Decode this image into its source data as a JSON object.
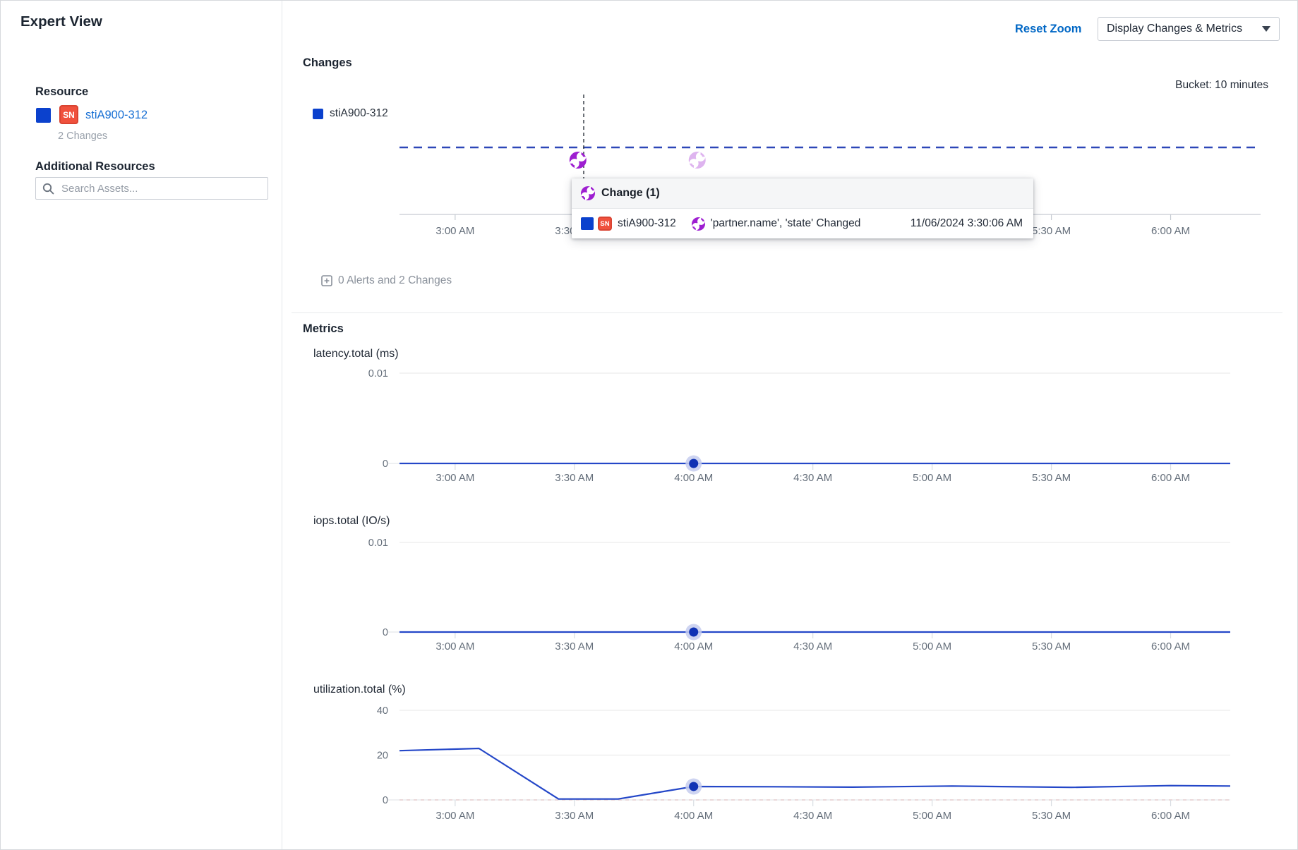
{
  "sidebar": {
    "title": "Expert View",
    "resource_label": "Resource",
    "resource": {
      "name": "stiA900-312",
      "icon_label": "SN",
      "changes_count": "2 Changes"
    },
    "additional_resources_label": "Additional Resources",
    "search_placeholder": "Search Assets..."
  },
  "toolbar": {
    "reset_zoom_label": "Reset Zoom",
    "display_dropdown_value": "Display Changes & Metrics"
  },
  "changes": {
    "section_title": "Changes",
    "bucket_label": "Bucket: 10 minutes",
    "legend_label": "stiA900-312",
    "markers": [
      {
        "time": "3:30 AM",
        "emphasis": "active"
      },
      {
        "time": "4:00 AM",
        "emphasis": "faded"
      }
    ],
    "tooltip": {
      "title": "Change (1)",
      "resource_name": "stiA900-312",
      "resource_icon": "SN",
      "description": "'partner.name', 'state' Changed",
      "timestamp": "11/06/2024 3:30:06 AM"
    },
    "summary_label": "0 Alerts and 2 Changes"
  },
  "metrics_section_title": "Metrics",
  "x_axis_labels": [
    "3:00 AM",
    "3:30 AM",
    "4:00 AM",
    "4:30 AM",
    "5:00 AM",
    "5:30 AM",
    "6:00 AM"
  ],
  "x_axis_range": [
    "2:46 AM",
    "6:15 AM"
  ],
  "chart_data": [
    {
      "type": "line",
      "title": "latency.total (ms)",
      "series_name": "stiA900-312",
      "ylim": [
        0,
        0.01
      ],
      "y_ticks": [
        {
          "v": 0.01,
          "label": "0.01"
        },
        {
          "v": 0,
          "label": "0"
        }
      ],
      "x_ticks": [
        "3:00 AM",
        "3:30 AM",
        "4:00 AM",
        "4:30 AM",
        "5:00 AM",
        "5:30 AM",
        "6:00 AM"
      ],
      "points": [
        {
          "t": "2:46 AM",
          "v": 0
        },
        {
          "t": "6:15 AM",
          "v": 0
        }
      ],
      "highlight": {
        "t": "4:00 AM",
        "v": 0
      }
    },
    {
      "type": "line",
      "title": "iops.total (IO/s)",
      "series_name": "stiA900-312",
      "ylim": [
        0,
        0.01
      ],
      "y_ticks": [
        {
          "v": 0.01,
          "label": "0.01"
        },
        {
          "v": 0,
          "label": "0"
        }
      ],
      "x_ticks": [
        "3:00 AM",
        "3:30 AM",
        "4:00 AM",
        "4:30 AM",
        "5:00 AM",
        "5:30 AM",
        "6:00 AM"
      ],
      "points": [
        {
          "t": "2:46 AM",
          "v": 0
        },
        {
          "t": "6:15 AM",
          "v": 0
        }
      ],
      "highlight": {
        "t": "4:00 AM",
        "v": 0
      }
    },
    {
      "type": "line",
      "title": "utilization.total (%)",
      "series_name": "stiA900-312",
      "ylim": [
        0,
        40
      ],
      "y_ticks": [
        {
          "v": 40,
          "label": "40"
        },
        {
          "v": 20,
          "label": "20"
        },
        {
          "v": 0,
          "label": "0"
        }
      ],
      "x_ticks": [
        "3:00 AM",
        "3:30 AM",
        "4:00 AM",
        "4:30 AM",
        "5:00 AM",
        "5:30 AM",
        "6:00 AM"
      ],
      "points": [
        {
          "t": "2:46 AM",
          "v": 22
        },
        {
          "t": "3:06 AM",
          "v": 23
        },
        {
          "t": "3:26 AM",
          "v": 0.4
        },
        {
          "t": "3:41 AM",
          "v": 0.4
        },
        {
          "t": "4:00 AM",
          "v": 6
        },
        {
          "t": "4:20 AM",
          "v": 5.9
        },
        {
          "t": "4:40 AM",
          "v": 5.7
        },
        {
          "t": "5:05 AM",
          "v": 6.2
        },
        {
          "t": "5:35 AM",
          "v": 5.6
        },
        {
          "t": "6:00 AM",
          "v": 6.4
        },
        {
          "t": "6:15 AM",
          "v": 6.2
        }
      ],
      "highlight": {
        "t": "4:00 AM",
        "v": 6
      }
    }
  ],
  "colors": {
    "brand_square_blue": "#0b41cd",
    "line_blue": "#2447c8",
    "dot_core_blue": "#1032b4",
    "dot_halo_blue": "#c5cdee",
    "dashed_navy": "#2d47b8",
    "change_purple": "#9e1fd1",
    "sn_red": "#f0513d",
    "link_blue": "#176fd4",
    "reset_blue": "#0067c5",
    "grid_gray": "#ececec",
    "axis_gray": "#c6cbd2",
    "tick_text": "#646e7a",
    "zero_dash_pink": "#e2c6c6"
  }
}
